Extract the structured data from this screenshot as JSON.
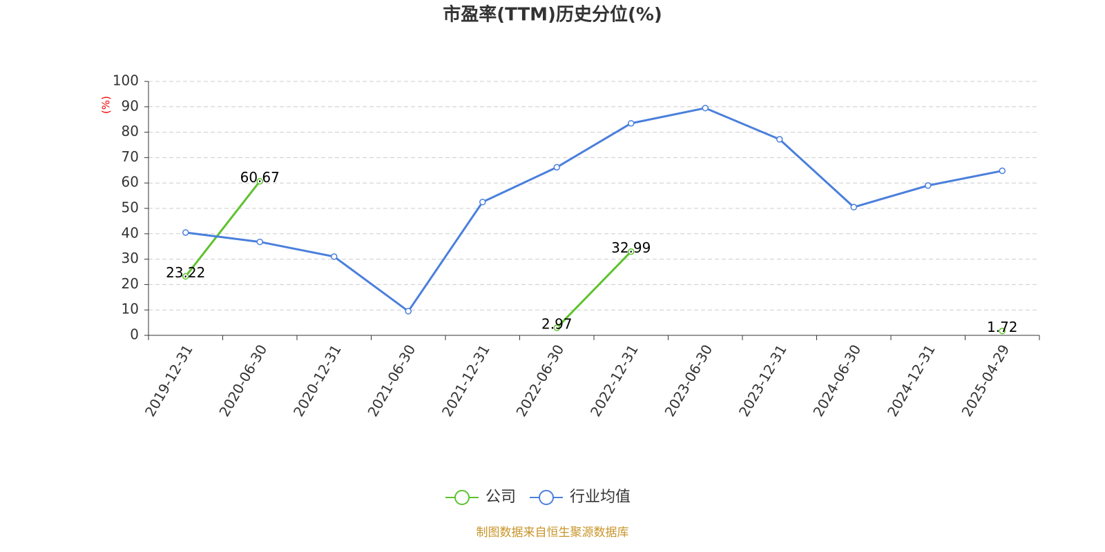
{
  "chart_data": {
    "type": "line",
    "title": "市盈率(TTM)历史分位(%)",
    "y_label": "(%)",
    "categories": [
      "2019-12-31",
      "2020-06-30",
      "2020-12-31",
      "2021-06-30",
      "2021-12-31",
      "2022-06-30",
      "2022-12-31",
      "2023-06-30",
      "2023-12-31",
      "2024-06-30",
      "2024-12-31",
      "2025-04-29"
    ],
    "series": [
      {
        "name": "公司",
        "color": "#5ec22e",
        "show_labels": true,
        "values": [
          23.22,
          60.67,
          null,
          null,
          null,
          2.97,
          32.99,
          null,
          null,
          null,
          null,
          1.72
        ]
      },
      {
        "name": "行业均值",
        "color": "#4a7fdc",
        "show_labels": false,
        "values": [
          40.5,
          36.8,
          31,
          9.5,
          52.5,
          66.2,
          83.5,
          89.5,
          77.2,
          50.5,
          59,
          64.8
        ]
      }
    ],
    "ylim": [
      0,
      100
    ],
    "yticks": [
      0,
      10,
      20,
      30,
      40,
      50,
      60,
      70,
      80,
      90,
      100
    ],
    "grid": true,
    "source": "制图数据来自恒生聚源数据库"
  }
}
